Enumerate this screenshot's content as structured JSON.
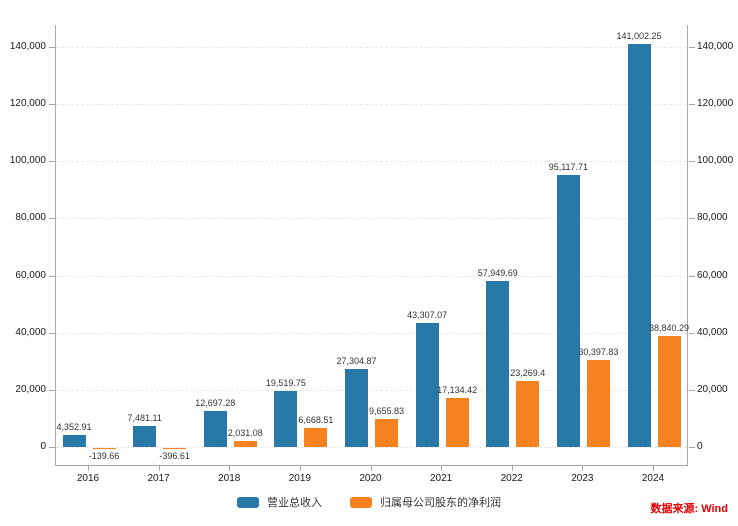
{
  "chart_data": {
    "type": "bar",
    "title": "",
    "xlabel": "",
    "ylabel": "",
    "categories": [
      "2016",
      "2017",
      "2018",
      "2019",
      "2020",
      "2021",
      "2022",
      "2023",
      "2024"
    ],
    "series": [
      {
        "name": "营业总收入",
        "color": "#2878a8",
        "values": [
          4352.91,
          7481.11,
          12697.28,
          19519.75,
          27304.87,
          43307.07,
          57949.69,
          95117.71,
          141002.25
        ],
        "labels": [
          "4,352.91",
          "7,481.11",
          "12,697.28",
          "19,519.75",
          "27,304.87",
          "43,307.07",
          "57,949.69",
          "95,117.71",
          "141,002.25"
        ]
      },
      {
        "name": "归属母公司股东的净利润",
        "color": "#f5821f",
        "values": [
          -139.66,
          -396.61,
          2031.08,
          6668.51,
          9655.83,
          17134.42,
          23269.4,
          30397.83,
          38840.29
        ],
        "labels": [
          "-139.66",
          "-396.61",
          "2,031.08",
          "6,668.51",
          "9,655.83",
          "17,134.42",
          "23,269.4",
          "30,397.83",
          "38,840.29"
        ]
      }
    ],
    "y_ticks": [
      0,
      20000,
      40000,
      60000,
      80000,
      100000,
      120000,
      140000
    ],
    "y_tick_labels": [
      "0",
      "20,000",
      "40,000",
      "60,000",
      "80,000",
      "100,000",
      "120,000",
      "140,000"
    ],
    "ylim": [
      -6600,
      147500
    ],
    "grid": "horizontal-dashed",
    "legend_position": "bottom",
    "dual_y_axis": true
  },
  "source_note": "数据来源: Wind",
  "colors": {
    "revenue_bar": "#2878a8",
    "profit_bar": "#f5821f",
    "axis_line": "#aaaaaa",
    "gridline": "#e8e8e8",
    "tick_text": "#1a1a1a",
    "value_label_text": "#333333",
    "source_text": "#e60000"
  }
}
